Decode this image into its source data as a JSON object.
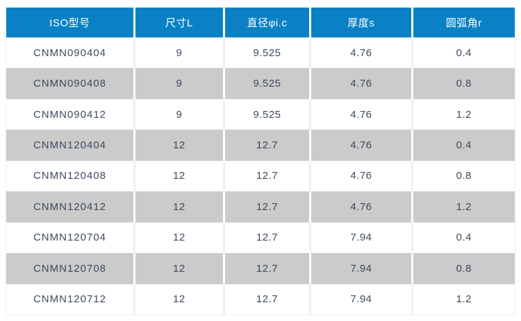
{
  "chart_data": {
    "type": "table",
    "columns": [
      "ISO型号",
      "尺寸L",
      "直径φi.c",
      "厚度s",
      "圆弧角r"
    ],
    "rows": [
      [
        "CNMN090404",
        "9",
        "9.525",
        "4.76",
        "0.4"
      ],
      [
        "CNMN090408",
        "9",
        "9.525",
        "4.76",
        "0.8"
      ],
      [
        "CNMN090412",
        "9",
        "9.525",
        "4.76",
        "1.2"
      ],
      [
        "CNMN120404",
        "12",
        "12.7",
        "4.76",
        "0.4"
      ],
      [
        "CNMN120408",
        "12",
        "12.7",
        "4.76",
        "0.8"
      ],
      [
        "CNMN120412",
        "12",
        "12.7",
        "4.76",
        "1.2"
      ],
      [
        "CNMN120704",
        "12",
        "12.7",
        "7.94",
        "0.4"
      ],
      [
        "CNMN120708",
        "12",
        "12.7",
        "7.94",
        "0.8"
      ],
      [
        "CNMN120712",
        "12",
        "12.7",
        "7.94",
        "1.2"
      ]
    ],
    "layout_hints": {
      "striped": true,
      "stripe_pattern": "even rows gray",
      "header_position": "top"
    }
  },
  "colors": {
    "header_bg": "#0a81c4",
    "header_text": "#ffffff",
    "stripe_bg": "#cbcbcb",
    "body_text": "#3d4a5c"
  }
}
